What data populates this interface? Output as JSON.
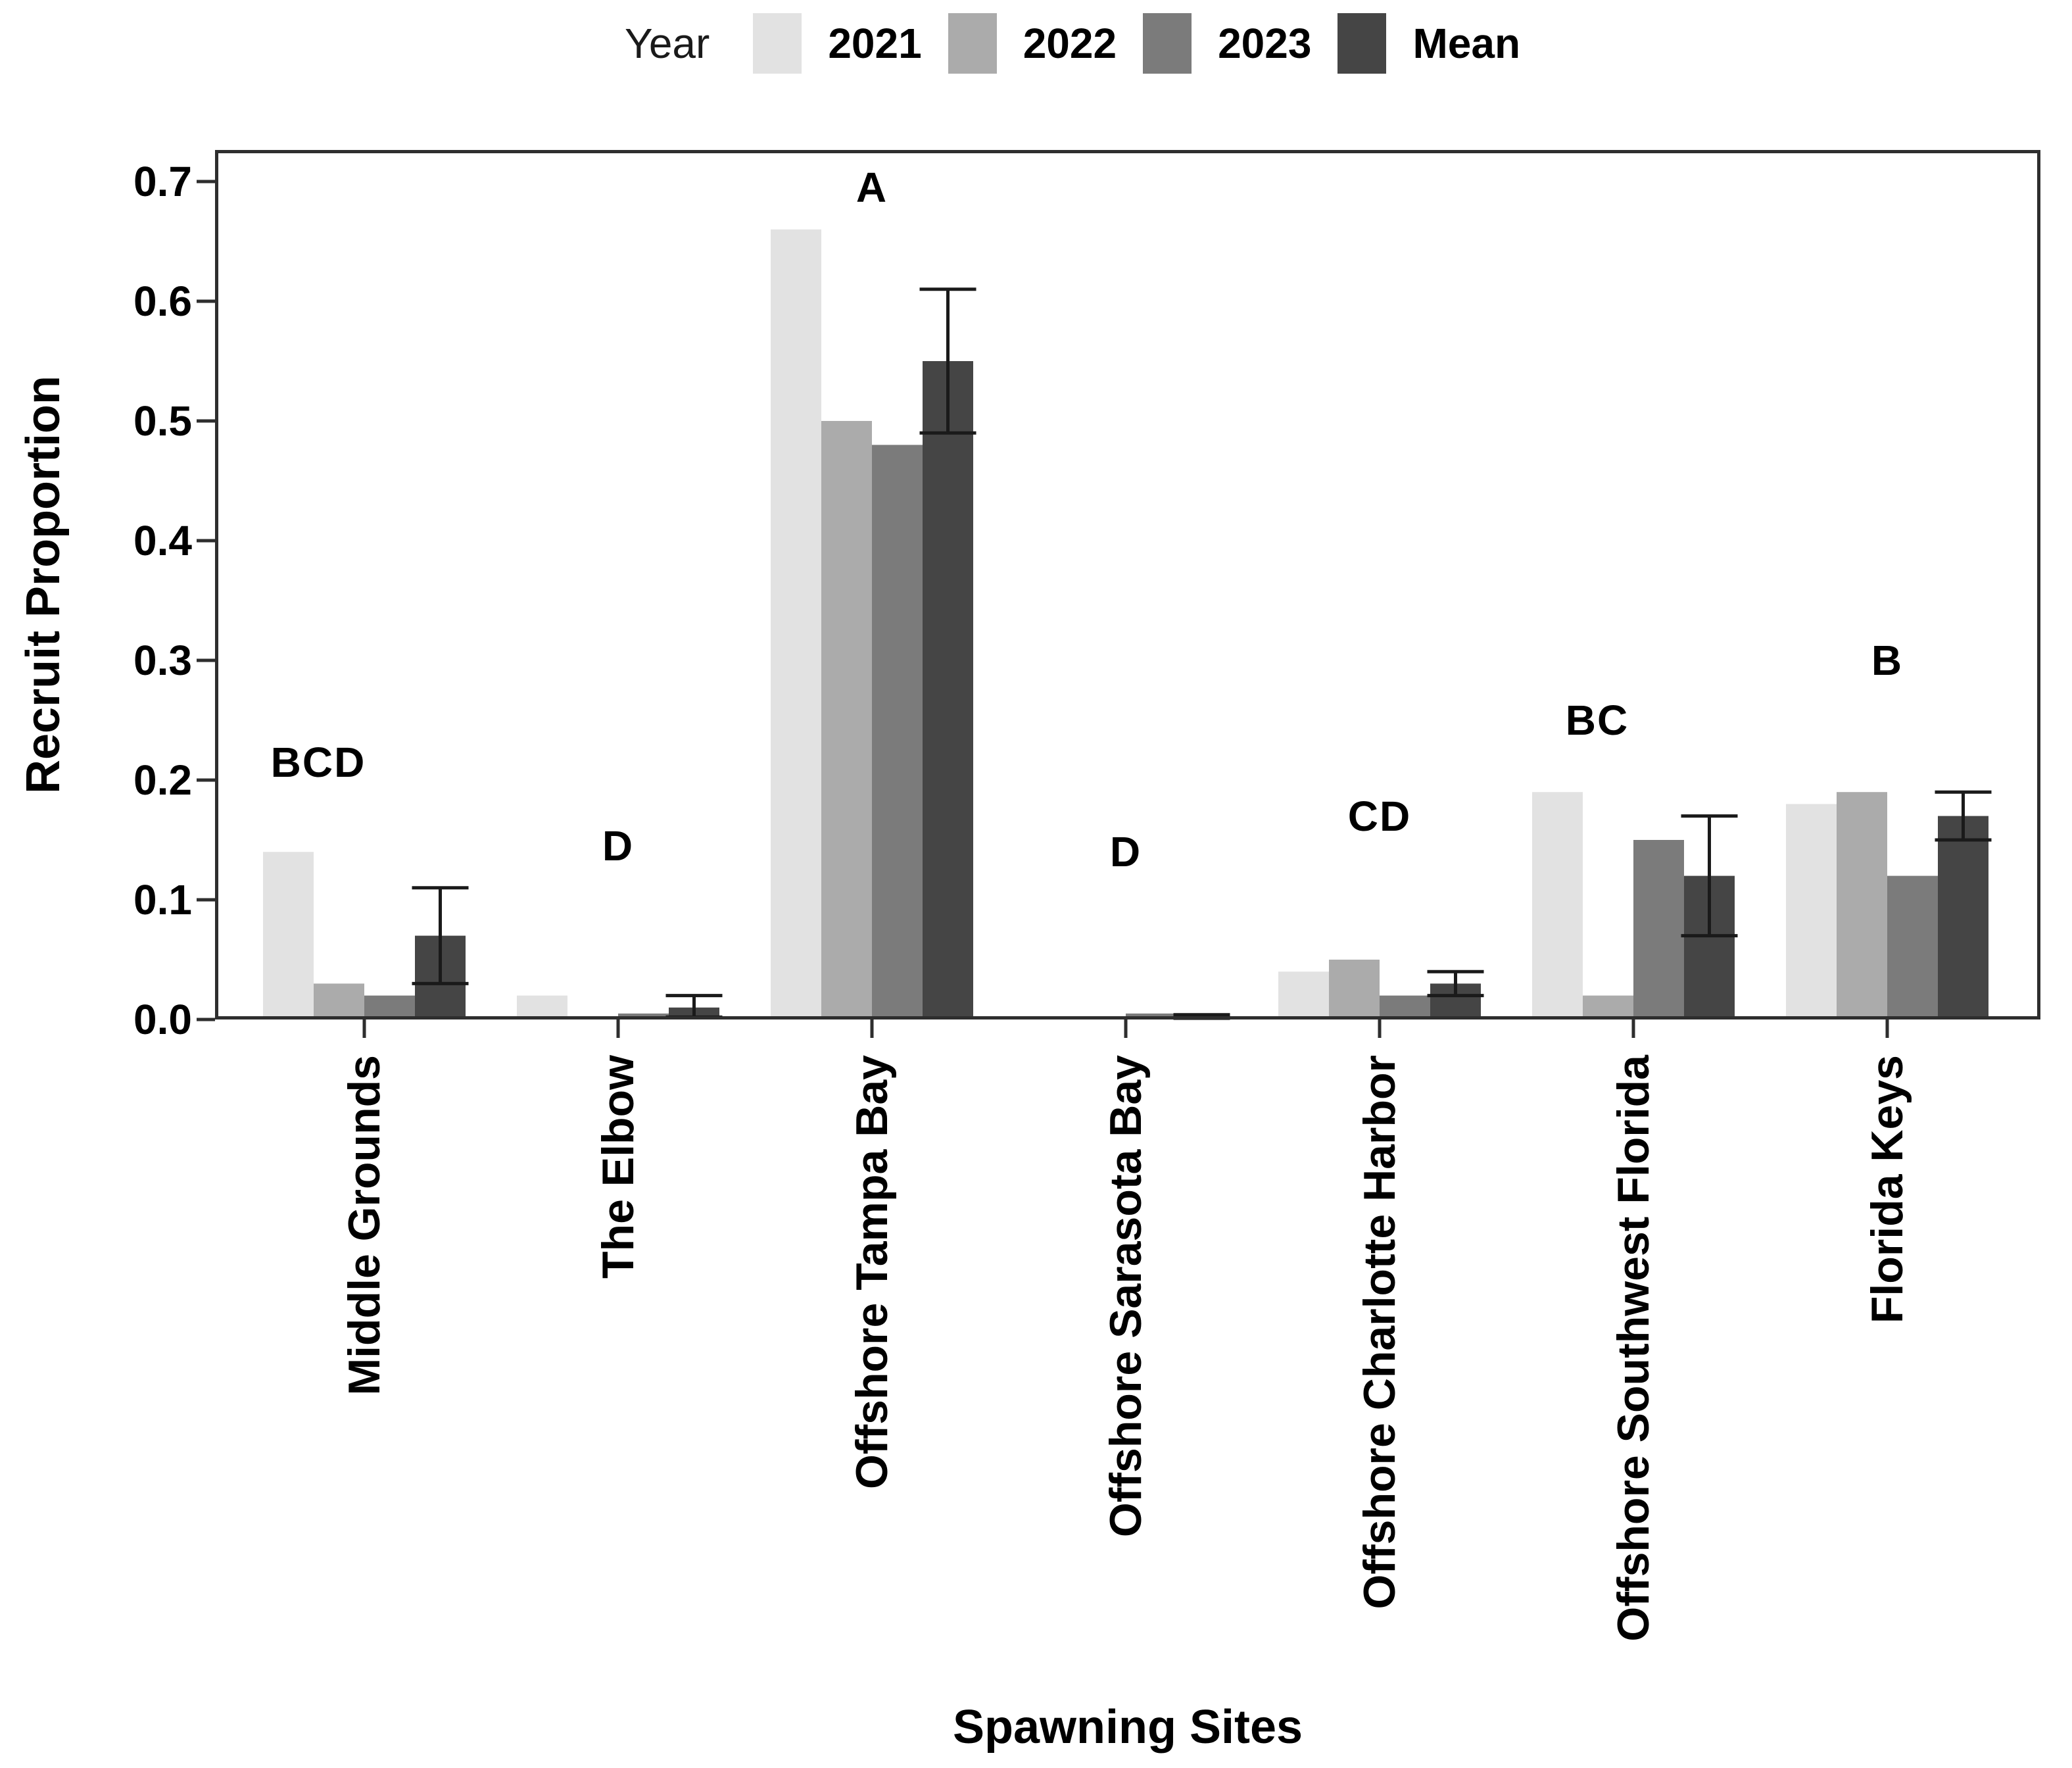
{
  "figure": {
    "background": "#ffffff",
    "frame_color": "#2e2e2e"
  },
  "chart_data": {
    "type": "bar",
    "title": "",
    "legend_title": "Year",
    "legend_position": "top",
    "xlabel": "Spawning Sites",
    "ylabel": "Recruit Proportion",
    "ylim": [
      0,
      0.727
    ],
    "yticks": [
      "0.0",
      "0.1",
      "0.2",
      "0.3",
      "0.4",
      "0.5",
      "0.6",
      "0.7"
    ],
    "grid": false,
    "error_bar_color": "#1a1a1a",
    "categories": [
      "Middle Grounds",
      "The Elbow",
      "Offshore Tampa Bay",
      "Offshore Sarasota Bay",
      "Offshore Charlotte Harbor",
      "Offshore Southwest Florida",
      "Florida Keys"
    ],
    "series": [
      {
        "name": "2021",
        "color": "#e2e2e2",
        "values": [
          0.14,
          0.02,
          0.66,
          0,
          0.04,
          0.19,
          0.18
        ]
      },
      {
        "name": "2022",
        "color": "#ababab",
        "values": [
          0.03,
          0.002,
          0.5,
          0,
          0.05,
          0.02,
          0.19
        ]
      },
      {
        "name": "2023",
        "color": "#7b7b7b",
        "values": [
          0.02,
          0.005,
          0.48,
          0.005,
          0.02,
          0.15,
          0.12
        ]
      },
      {
        "name": "Mean",
        "color": "#454545",
        "values": [
          0.07,
          0.01,
          0.55,
          0.002,
          0.03,
          0.12,
          0.17
        ]
      }
    ],
    "mean_error_bars": [
      {
        "low": 0.03,
        "high": 0.11
      },
      {
        "low": 0.002,
        "high": 0.02
      },
      {
        "low": 0.49,
        "high": 0.61
      },
      {
        "low": 0.001,
        "high": 0.004
      },
      {
        "low": 0.02,
        "high": 0.04
      },
      {
        "low": 0.07,
        "high": 0.17
      },
      {
        "low": 0.15,
        "high": 0.19
      }
    ],
    "significance_letters": [
      {
        "label": "BCD",
        "y": 0.215,
        "dx": -70
      },
      {
        "label": "D",
        "y": 0.145,
        "dx": 0
      },
      {
        "label": "A",
        "y": 0.695,
        "dx": 0
      },
      {
        "label": "D",
        "y": 0.14,
        "dx": 0
      },
      {
        "label": "CD",
        "y": 0.17,
        "dx": 0
      },
      {
        "label": "BC",
        "y": 0.25,
        "dx": -55
      },
      {
        "label": "B",
        "y": 0.3,
        "dx": 0
      }
    ]
  }
}
